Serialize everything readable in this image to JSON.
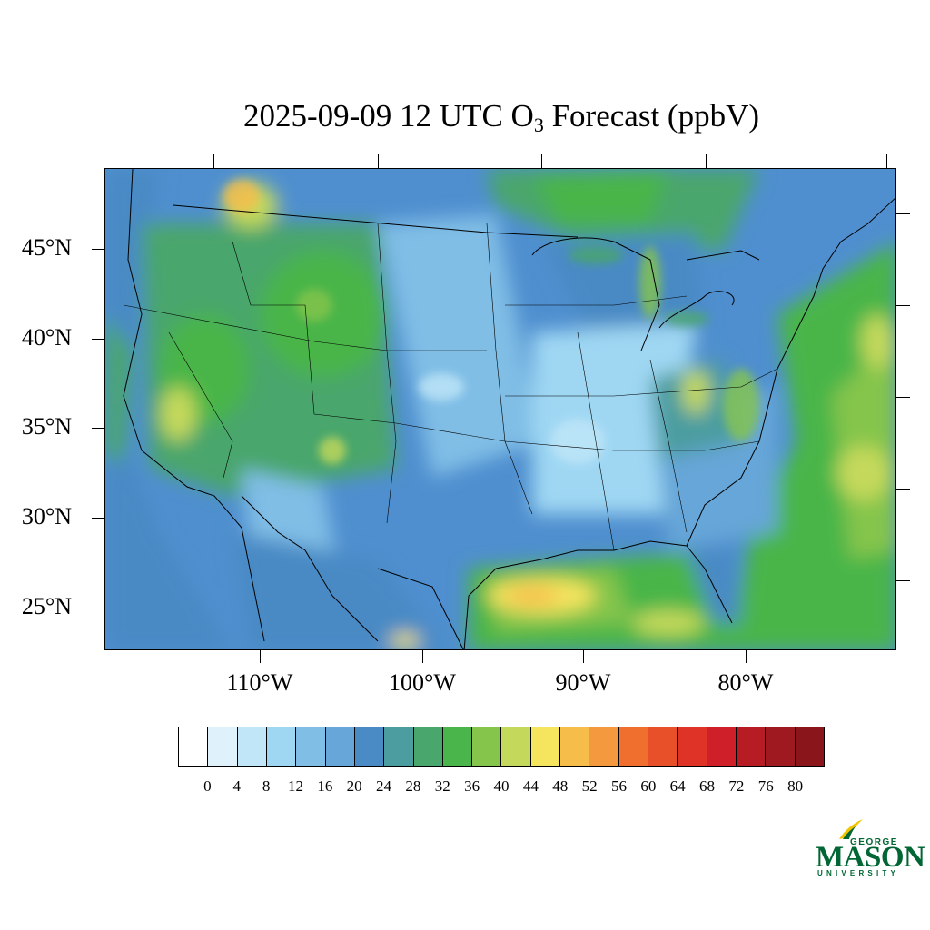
{
  "title": {
    "prefix": "2025-09-09 12 UTC O",
    "subscript": "3",
    "suffix": " Forecast (ppbV)"
  },
  "map": {
    "region": "Continental United States",
    "projection": "Lambert conformal",
    "latitude_labels": [
      "45°N",
      "40°N",
      "35°N",
      "30°N",
      "25°N"
    ],
    "longitude_labels": [
      "110°W",
      "100°W",
      "90°W",
      "80°W"
    ]
  },
  "colorbar": {
    "labels": [
      "0",
      "4",
      "8",
      "12",
      "16",
      "20",
      "24",
      "28",
      "32",
      "36",
      "40",
      "44",
      "48",
      "52",
      "56",
      "60",
      "64",
      "68",
      "72",
      "76",
      "80"
    ],
    "colors": [
      "#ffffff",
      "#dff1fb",
      "#c0e6f8",
      "#9fd7f3",
      "#80bee6",
      "#66a6d8",
      "#4a8ac5",
      "#4b9da0",
      "#49a66c",
      "#4ab54a",
      "#85c54c",
      "#c4d95b",
      "#f5e55e",
      "#f7bd4b",
      "#f5993e",
      "#f06f2e",
      "#e8502a",
      "#df3328",
      "#cf2029",
      "#b71c24",
      "#9e1a20",
      "#8a161b"
    ]
  },
  "logo": {
    "line1": "GEORGE",
    "line2": "MASON",
    "line3": "UNIVERSITY",
    "color": "#006633",
    "accent": "#f2c300"
  }
}
